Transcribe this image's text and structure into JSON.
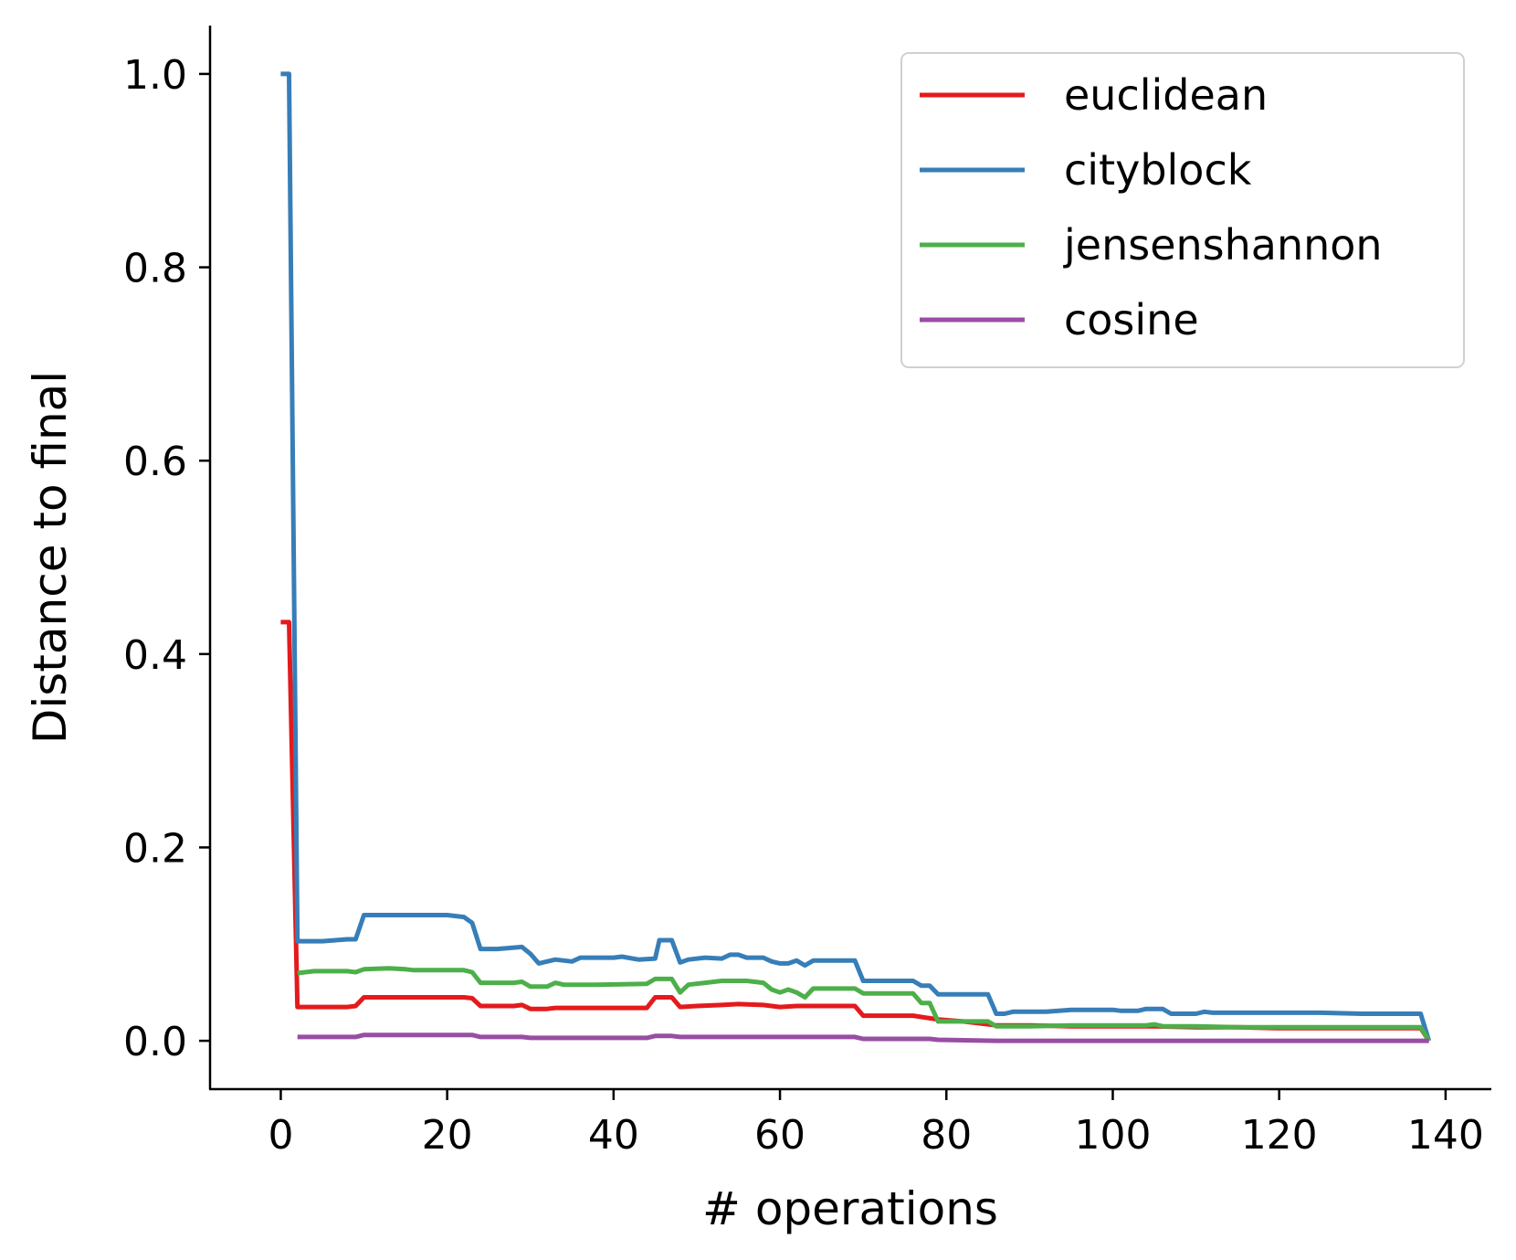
{
  "chart_data": {
    "type": "line",
    "xlabel": "# operations",
    "ylabel": "Distance to final",
    "xlim": [
      -8.5,
      145.5
    ],
    "ylim": [
      -0.05,
      1.05
    ],
    "xticks": [
      0,
      20,
      40,
      60,
      80,
      100,
      120,
      140
    ],
    "xtick_labels": [
      "0",
      "20",
      "40",
      "60",
      "80",
      "100",
      "120",
      "140"
    ],
    "yticks": [
      0.0,
      0.2,
      0.4,
      0.6,
      0.8,
      1.0
    ],
    "ytick_labels": [
      "0.0",
      "0.2",
      "0.4",
      "0.6",
      "0.8",
      "1.0"
    ],
    "grid": false,
    "legend_position": "top-right",
    "series": [
      {
        "name": "euclidean",
        "color": "#e41a1c",
        "points": [
          [
            0,
            0.433
          ],
          [
            1,
            0.433
          ],
          [
            2,
            0.035
          ],
          [
            5,
            0.035
          ],
          [
            8,
            0.035
          ],
          [
            9,
            0.036
          ],
          [
            10,
            0.045
          ],
          [
            13,
            0.045
          ],
          [
            16,
            0.045
          ],
          [
            19,
            0.045
          ],
          [
            22,
            0.045
          ],
          [
            23,
            0.044
          ],
          [
            24,
            0.036
          ],
          [
            28,
            0.036
          ],
          [
            29,
            0.037
          ],
          [
            30,
            0.033
          ],
          [
            32,
            0.033
          ],
          [
            33,
            0.034
          ],
          [
            36,
            0.034
          ],
          [
            40,
            0.034
          ],
          [
            44,
            0.034
          ],
          [
            45,
            0.045
          ],
          [
            47,
            0.045
          ],
          [
            48,
            0.035
          ],
          [
            50,
            0.036
          ],
          [
            53,
            0.037
          ],
          [
            55,
            0.038
          ],
          [
            58,
            0.037
          ],
          [
            60,
            0.035
          ],
          [
            62,
            0.036
          ],
          [
            65,
            0.036
          ],
          [
            69,
            0.036
          ],
          [
            70,
            0.026
          ],
          [
            72,
            0.026
          ],
          [
            76,
            0.026
          ],
          [
            79,
            0.022
          ],
          [
            82,
            0.02
          ],
          [
            86,
            0.016
          ],
          [
            90,
            0.016
          ],
          [
            95,
            0.015
          ],
          [
            100,
            0.015
          ],
          [
            105,
            0.015
          ],
          [
            110,
            0.014
          ],
          [
            115,
            0.014
          ],
          [
            120,
            0.013
          ],
          [
            125,
            0.013
          ],
          [
            130,
            0.013
          ],
          [
            137,
            0.013
          ],
          [
            138,
            0.0
          ]
        ]
      },
      {
        "name": "cityblock",
        "color": "#377eb8",
        "points": [
          [
            0,
            1.0
          ],
          [
            1,
            1.0
          ],
          [
            2,
            0.103
          ],
          [
            3,
            0.103
          ],
          [
            5,
            0.103
          ],
          [
            8,
            0.105
          ],
          [
            9,
            0.105
          ],
          [
            10,
            0.13
          ],
          [
            14,
            0.13
          ],
          [
            18,
            0.13
          ],
          [
            20,
            0.13
          ],
          [
            22,
            0.128
          ],
          [
            23,
            0.122
          ],
          [
            24,
            0.095
          ],
          [
            26,
            0.095
          ],
          [
            29,
            0.097
          ],
          [
            30,
            0.09
          ],
          [
            31,
            0.08
          ],
          [
            33,
            0.084
          ],
          [
            35,
            0.082
          ],
          [
            36,
            0.086
          ],
          [
            40,
            0.086
          ],
          [
            41,
            0.087
          ],
          [
            43,
            0.084
          ],
          [
            45,
            0.085
          ],
          [
            45.5,
            0.104
          ],
          [
            47,
            0.104
          ],
          [
            48,
            0.081
          ],
          [
            49,
            0.084
          ],
          [
            51,
            0.086
          ],
          [
            53,
            0.085
          ],
          [
            54,
            0.089
          ],
          [
            55,
            0.089
          ],
          [
            56,
            0.086
          ],
          [
            58,
            0.086
          ],
          [
            59,
            0.082
          ],
          [
            60,
            0.08
          ],
          [
            61,
            0.08
          ],
          [
            62,
            0.083
          ],
          [
            63,
            0.078
          ],
          [
            64,
            0.083
          ],
          [
            69,
            0.083
          ],
          [
            70,
            0.062
          ],
          [
            72,
            0.062
          ],
          [
            76,
            0.062
          ],
          [
            77,
            0.057
          ],
          [
            78,
            0.057
          ],
          [
            79,
            0.048
          ],
          [
            85,
            0.048
          ],
          [
            86,
            0.028
          ],
          [
            87,
            0.028
          ],
          [
            88,
            0.03
          ],
          [
            92,
            0.03
          ],
          [
            95,
            0.032
          ],
          [
            97,
            0.032
          ],
          [
            100,
            0.032
          ],
          [
            101,
            0.031
          ],
          [
            103,
            0.031
          ],
          [
            104,
            0.033
          ],
          [
            106,
            0.033
          ],
          [
            107,
            0.028
          ],
          [
            110,
            0.028
          ],
          [
            111,
            0.03
          ],
          [
            112,
            0.029
          ],
          [
            115,
            0.029
          ],
          [
            120,
            0.029
          ],
          [
            125,
            0.029
          ],
          [
            130,
            0.028
          ],
          [
            137,
            0.028
          ],
          [
            138,
            0.0
          ]
        ]
      },
      {
        "name": "jensenshannon",
        "color": "#4daf4a",
        "points": [
          [
            2,
            0.07
          ],
          [
            4,
            0.072
          ],
          [
            8,
            0.072
          ],
          [
            9,
            0.071
          ],
          [
            10,
            0.074
          ],
          [
            13,
            0.075
          ],
          [
            15,
            0.074
          ],
          [
            16,
            0.073
          ],
          [
            20,
            0.073
          ],
          [
            22,
            0.073
          ],
          [
            23,
            0.071
          ],
          [
            24,
            0.06
          ],
          [
            28,
            0.06
          ],
          [
            29,
            0.061
          ],
          [
            30,
            0.056
          ],
          [
            32,
            0.056
          ],
          [
            33,
            0.06
          ],
          [
            34,
            0.058
          ],
          [
            38,
            0.058
          ],
          [
            44,
            0.059
          ],
          [
            45,
            0.064
          ],
          [
            47,
            0.064
          ],
          [
            48,
            0.05
          ],
          [
            49,
            0.058
          ],
          [
            51,
            0.06
          ],
          [
            53,
            0.062
          ],
          [
            56,
            0.062
          ],
          [
            58,
            0.06
          ],
          [
            59,
            0.053
          ],
          [
            60,
            0.05
          ],
          [
            61,
            0.053
          ],
          [
            62,
            0.05
          ],
          [
            63,
            0.045
          ],
          [
            64,
            0.054
          ],
          [
            66,
            0.054
          ],
          [
            69,
            0.054
          ],
          [
            70,
            0.049
          ],
          [
            72,
            0.049
          ],
          [
            76,
            0.049
          ],
          [
            77,
            0.039
          ],
          [
            78,
            0.039
          ],
          [
            79,
            0.02
          ],
          [
            85,
            0.02
          ],
          [
            86,
            0.015
          ],
          [
            90,
            0.015
          ],
          [
            95,
            0.016
          ],
          [
            100,
            0.016
          ],
          [
            104,
            0.016
          ],
          [
            105,
            0.017
          ],
          [
            106,
            0.015
          ],
          [
            110,
            0.015
          ],
          [
            115,
            0.014
          ],
          [
            120,
            0.014
          ],
          [
            125,
            0.014
          ],
          [
            130,
            0.014
          ],
          [
            137,
            0.014
          ],
          [
            138,
            0.0
          ]
        ]
      },
      {
        "name": "cosine",
        "color": "#984ea3",
        "points": [
          [
            2,
            0.004
          ],
          [
            8,
            0.004
          ],
          [
            9,
            0.004
          ],
          [
            10,
            0.006
          ],
          [
            15,
            0.006
          ],
          [
            20,
            0.006
          ],
          [
            23,
            0.006
          ],
          [
            24,
            0.004
          ],
          [
            29,
            0.004
          ],
          [
            30,
            0.003
          ],
          [
            40,
            0.003
          ],
          [
            44,
            0.003
          ],
          [
            45,
            0.005
          ],
          [
            47,
            0.005
          ],
          [
            48,
            0.004
          ],
          [
            60,
            0.004
          ],
          [
            69,
            0.004
          ],
          [
            70,
            0.002
          ],
          [
            78,
            0.002
          ],
          [
            79,
            0.001
          ],
          [
            86,
            0.0
          ],
          [
            100,
            0.0
          ],
          [
            138,
            0.0
          ]
        ]
      }
    ]
  }
}
